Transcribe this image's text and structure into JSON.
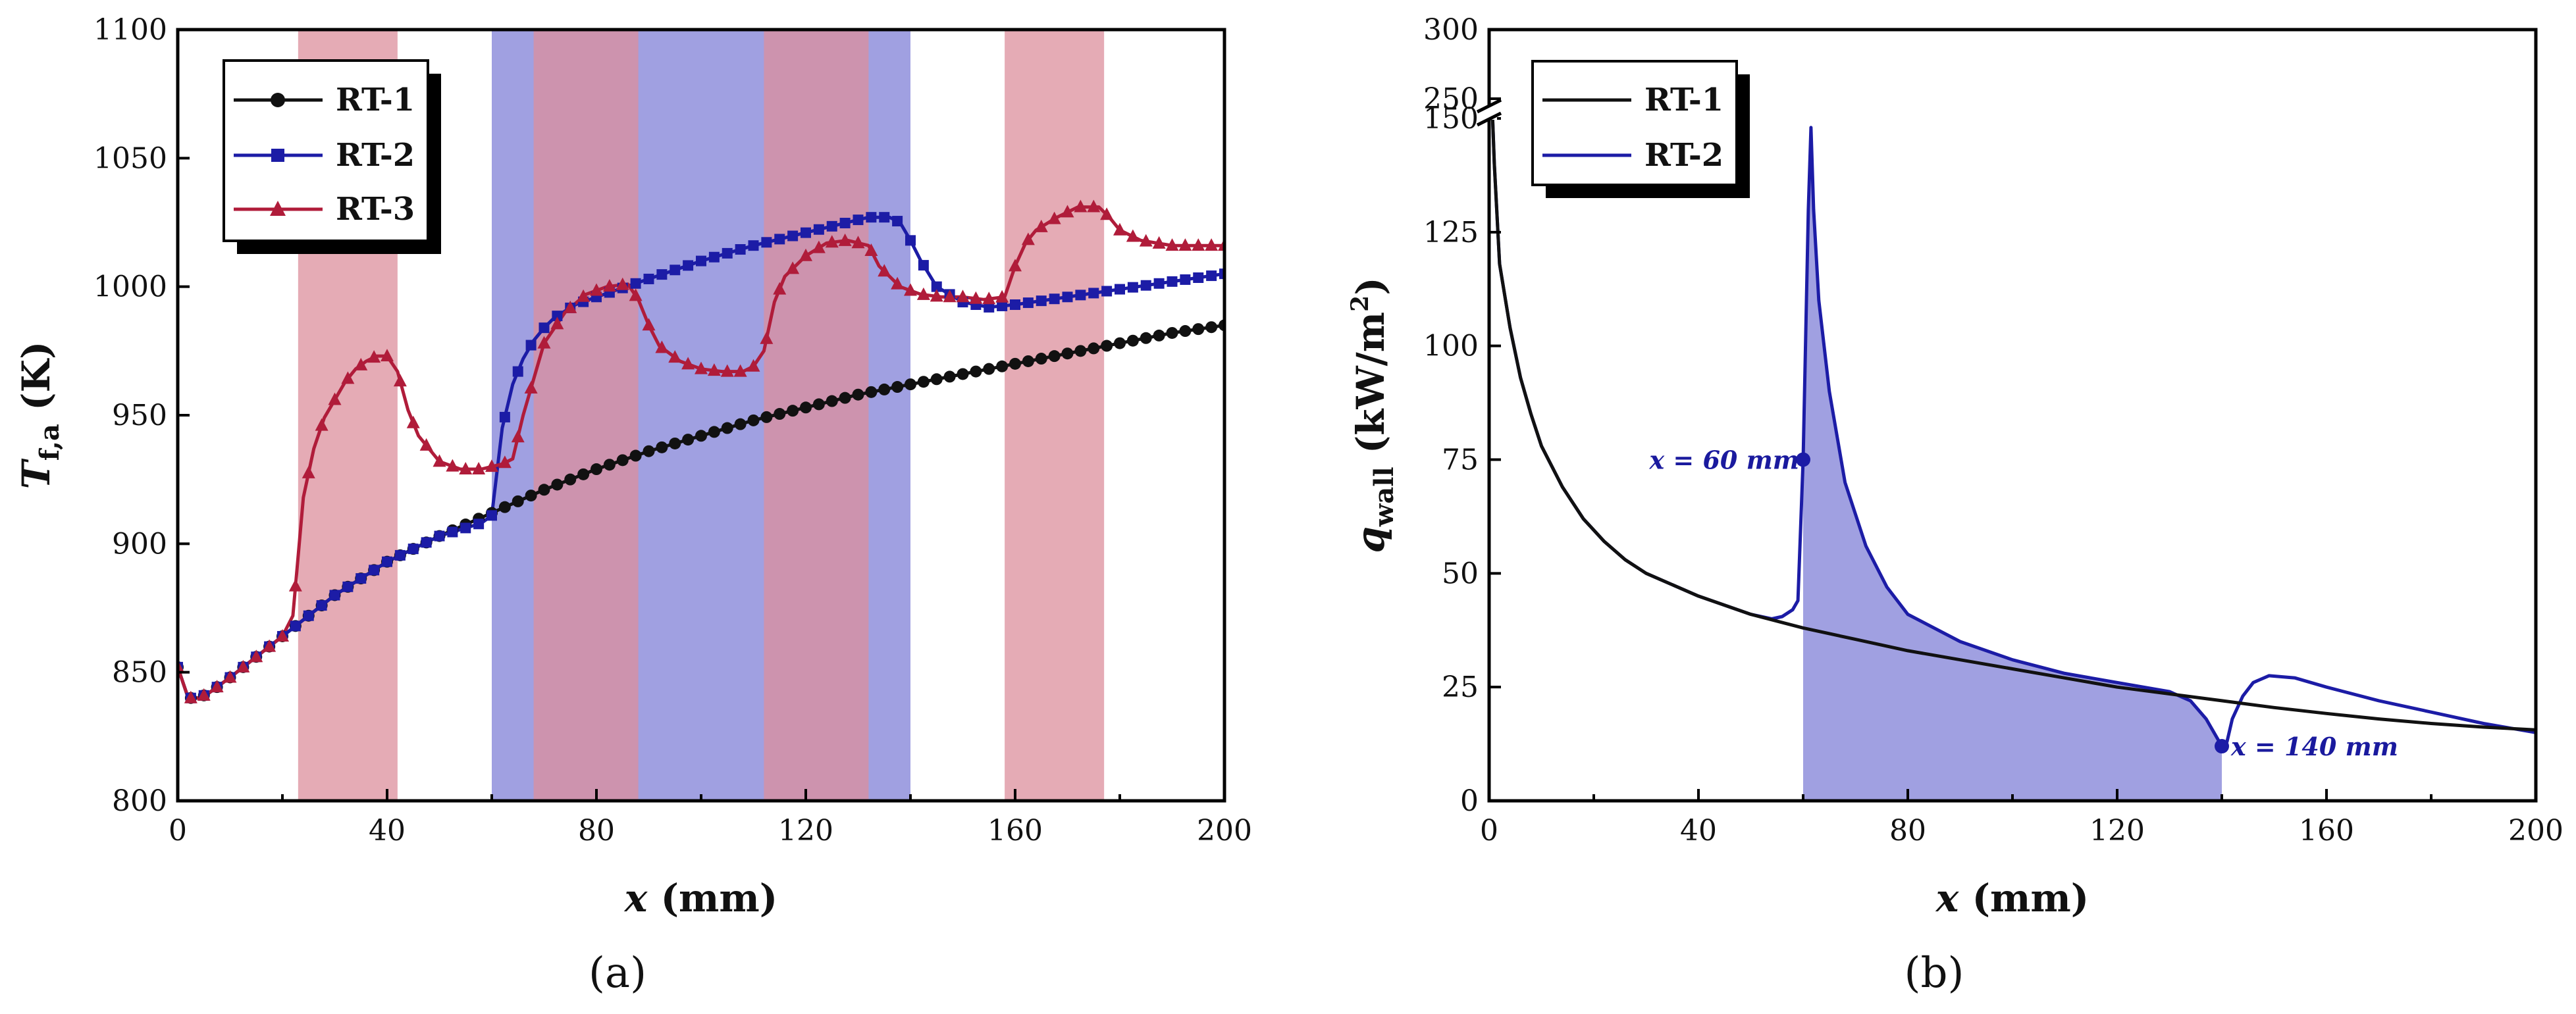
{
  "colors": {
    "rt1": "#111111",
    "rt2": "#1c1ca6",
    "rt3": "#b01c3a",
    "fill_blue": "#8f8fdc",
    "fill_red": "#dc8f9c",
    "fill_overlap": "#9a5a8c"
  },
  "chart_data": [
    {
      "id": "a",
      "type": "line",
      "panel_label": "(a)",
      "ylabel": "T",
      "ylabel_sub": "f,a",
      "ylabel_unit": " (K)",
      "xlabel_var": "x",
      "xlabel_unit": " (mm)",
      "xlim": [
        0,
        200
      ],
      "ylim": [
        800,
        1100
      ],
      "xticks": [
        0,
        40,
        80,
        120,
        160,
        200
      ],
      "yticks": [
        800,
        850,
        900,
        950,
        1000,
        1050,
        1100
      ],
      "legend": [
        "RT-1",
        "RT-2",
        "RT-3"
      ],
      "shaded_regions": [
        {
          "from": 23,
          "to": 42,
          "color": "red"
        },
        {
          "from": 60,
          "to": 140,
          "color": "blue"
        },
        {
          "from": 68,
          "to": 88,
          "color": "red"
        },
        {
          "from": 112,
          "to": 132,
          "color": "red"
        },
        {
          "from": 158,
          "to": 177,
          "color": "red"
        }
      ],
      "series": [
        {
          "name": "RT-1",
          "marker": "circle",
          "points": [
            [
              0,
              852
            ],
            [
              2,
              840
            ],
            [
              4,
              840
            ],
            [
              6,
              842
            ],
            [
              10,
              848
            ],
            [
              15,
              856
            ],
            [
              20,
              864
            ],
            [
              30,
              880
            ],
            [
              40,
              893
            ],
            [
              50,
              903
            ],
            [
              60,
              912
            ],
            [
              70,
              921
            ],
            [
              80,
              929
            ],
            [
              90,
              936
            ],
            [
              100,
              942
            ],
            [
              110,
              948
            ],
            [
              120,
              953
            ],
            [
              130,
              958
            ],
            [
              140,
              962
            ],
            [
              150,
              966
            ],
            [
              160,
              970
            ],
            [
              170,
              974
            ],
            [
              180,
              978
            ],
            [
              190,
              982
            ],
            [
              200,
              985
            ]
          ]
        },
        {
          "name": "RT-2",
          "marker": "square",
          "points": [
            [
              0,
              852
            ],
            [
              2,
              840
            ],
            [
              4,
              840
            ],
            [
              6,
              842
            ],
            [
              10,
              848
            ],
            [
              15,
              856
            ],
            [
              20,
              864
            ],
            [
              30,
              880
            ],
            [
              40,
              893
            ],
            [
              50,
              903
            ],
            [
              58,
              908
            ],
            [
              60,
              911
            ],
            [
              62,
              945
            ],
            [
              64,
              962
            ],
            [
              66,
              972
            ],
            [
              68,
              979
            ],
            [
              70,
              984
            ],
            [
              72,
              988
            ],
            [
              76,
              993
            ],
            [
              80,
              996
            ],
            [
              90,
              1003
            ],
            [
              100,
              1010
            ],
            [
              110,
              1016
            ],
            [
              120,
              1021
            ],
            [
              128,
              1025
            ],
            [
              132,
              1027
            ],
            [
              136,
              1027
            ],
            [
              138,
              1025
            ],
            [
              140,
              1018
            ],
            [
              142,
              1010
            ],
            [
              145,
              1000
            ],
            [
              150,
              994
            ],
            [
              155,
              992
            ],
            [
              160,
              993
            ],
            [
              170,
              996
            ],
            [
              180,
              999
            ],
            [
              190,
              1002
            ],
            [
              200,
              1005
            ]
          ]
        },
        {
          "name": "RT-3",
          "marker": "triangle",
          "points": [
            [
              0,
              852
            ],
            [
              2,
              840
            ],
            [
              4,
              840
            ],
            [
              6,
              842
            ],
            [
              10,
              848
            ],
            [
              15,
              856
            ],
            [
              20,
              864
            ],
            [
              22,
              872
            ],
            [
              24,
              918
            ],
            [
              26,
              937
            ],
            [
              28,
              949
            ],
            [
              30,
              956
            ],
            [
              32,
              963
            ],
            [
              34,
              968
            ],
            [
              36,
              971
            ],
            [
              38,
              973
            ],
            [
              40,
              973
            ],
            [
              42,
              967
            ],
            [
              44,
              952
            ],
            [
              46,
              942
            ],
            [
              50,
              932
            ],
            [
              54,
              929
            ],
            [
              58,
              929
            ],
            [
              60,
              930
            ],
            [
              62,
              931
            ],
            [
              64,
              933
            ],
            [
              66,
              950
            ],
            [
              70,
              978
            ],
            [
              74,
              990
            ],
            [
              78,
              997
            ],
            [
              82,
              1000
            ],
            [
              86,
              1001
            ],
            [
              88,
              995
            ],
            [
              90,
              985
            ],
            [
              92,
              977
            ],
            [
              96,
              971
            ],
            [
              100,
              968
            ],
            [
              104,
              967
            ],
            [
              108,
              967
            ],
            [
              110,
              969
            ],
            [
              112,
              975
            ],
            [
              114,
              994
            ],
            [
              116,
              1004
            ],
            [
              120,
              1012
            ],
            [
              124,
              1017
            ],
            [
              128,
              1018
            ],
            [
              132,
              1016
            ],
            [
              134,
              1008
            ],
            [
              138,
              1000
            ],
            [
              142,
              997
            ],
            [
              146,
              996
            ],
            [
              150,
              996
            ],
            [
              154,
              995
            ],
            [
              158,
              996
            ],
            [
              160,
              1008
            ],
            [
              162,
              1017
            ],
            [
              164,
              1022
            ],
            [
              168,
              1027
            ],
            [
              172,
              1031
            ],
            [
              176,
              1031
            ],
            [
              178,
              1027
            ],
            [
              180,
              1022
            ],
            [
              184,
              1018
            ],
            [
              190,
              1016
            ],
            [
              200,
              1016
            ]
          ]
        }
      ]
    },
    {
      "id": "b",
      "type": "line",
      "panel_label": "(b)",
      "ylabel": "q",
      "ylabel_sub": "wall",
      "ylabel_unit": " (kW/m",
      "ylabel_sup": "2",
      "ylabel_close": ")",
      "xlabel_var": "x",
      "xlabel_unit": " (mm)",
      "xlim": [
        0,
        200
      ],
      "ylim": [
        0,
        150
      ],
      "y_break": {
        "at": 150,
        "upper_range": [
          250,
          300
        ]
      },
      "xticks": [
        0,
        40,
        80,
        120,
        160,
        200
      ],
      "yticks": [
        0,
        25,
        50,
        75,
        100,
        125,
        150
      ],
      "upper_yticks": [
        250,
        300
      ],
      "legend": [
        "RT-1",
        "RT-2"
      ],
      "shaded_region": {
        "from": 60,
        "to": 140,
        "color": "blue"
      },
      "annotations": [
        {
          "text": "x = 60 mm",
          "x": 60,
          "y": 75
        },
        {
          "text": "x = 140 mm",
          "x": 140,
          "y": 12
        }
      ],
      "series": [
        {
          "name": "RT-1",
          "points": [
            [
              0.6,
              152
            ],
            [
              1,
              140
            ],
            [
              2,
              118
            ],
            [
              4,
              104
            ],
            [
              6,
              93
            ],
            [
              8,
              85
            ],
            [
              10,
              78
            ],
            [
              14,
              69
            ],
            [
              18,
              62
            ],
            [
              22,
              57
            ],
            [
              26,
              53
            ],
            [
              30,
              50
            ],
            [
              40,
              45
            ],
            [
              50,
              41
            ],
            [
              60,
              38
            ],
            [
              70,
              35.5
            ],
            [
              80,
              33
            ],
            [
              90,
              31
            ],
            [
              100,
              29
            ],
            [
              110,
              27
            ],
            [
              120,
              25
            ],
            [
              130,
              23.5
            ],
            [
              140,
              22
            ],
            [
              150,
              20.5
            ],
            [
              160,
              19.2
            ],
            [
              170,
              18
            ],
            [
              180,
              17
            ],
            [
              190,
              16.2
            ],
            [
              200,
              15.6
            ]
          ]
        },
        {
          "name": "RT-2",
          "points": [
            [
              0.6,
              152
            ],
            [
              1,
              140
            ],
            [
              2,
              118
            ],
            [
              4,
              104
            ],
            [
              6,
              93
            ],
            [
              8,
              85
            ],
            [
              10,
              78
            ],
            [
              14,
              69
            ],
            [
              18,
              62
            ],
            [
              22,
              57
            ],
            [
              26,
              53
            ],
            [
              30,
              50
            ],
            [
              40,
              45
            ],
            [
              50,
              41
            ],
            [
              54,
              40
            ],
            [
              56,
              40.5
            ],
            [
              58,
              42
            ],
            [
              59,
              44
            ],
            [
              60,
              75
            ],
            [
              61,
              130
            ],
            [
              61.5,
              148
            ],
            [
              62,
              130
            ],
            [
              63,
              110
            ],
            [
              65,
              90
            ],
            [
              68,
              70
            ],
            [
              72,
              56
            ],
            [
              76,
              47
            ],
            [
              80,
              41
            ],
            [
              90,
              35
            ],
            [
              100,
              31
            ],
            [
              110,
              28
            ],
            [
              120,
              26
            ],
            [
              130,
              24
            ],
            [
              134,
              22
            ],
            [
              137,
              18
            ],
            [
              139,
              14
            ],
            [
              140,
              12
            ],
            [
              141,
              13
            ],
            [
              142,
              18
            ],
            [
              144,
              23
            ],
            [
              146,
              26
            ],
            [
              149,
              27.5
            ],
            [
              154,
              27
            ],
            [
              160,
              25
            ],
            [
              170,
              22
            ],
            [
              180,
              19.5
            ],
            [
              190,
              17
            ],
            [
              200,
              15
            ]
          ]
        }
      ]
    }
  ]
}
